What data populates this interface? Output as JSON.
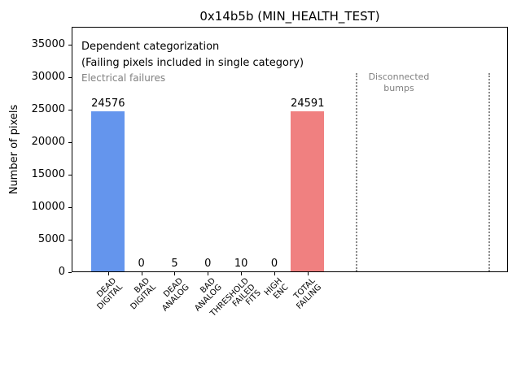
{
  "chart_data": {
    "type": "bar",
    "title": "0x14b5b (MIN_HEALTH_TEST)",
    "ylabel": "Number of pixels",
    "xlabel": "",
    "ylim": [
      0,
      37750
    ],
    "yticks": [
      0,
      5000,
      10000,
      15000,
      20000,
      25000,
      30000,
      35000
    ],
    "grid": false,
    "legend_position": "none",
    "bars": [
      {
        "label_lines": [
          "DEAD",
          "DIGITAL"
        ],
        "value": 24576,
        "color": "#6495ED"
      },
      {
        "label_lines": [
          "BAD",
          "DIGITAL"
        ],
        "value": 0,
        "color": null
      },
      {
        "label_lines": [
          "DEAD",
          "ANALOG"
        ],
        "value": 5,
        "color": null
      },
      {
        "label_lines": [
          "BAD",
          "ANALOG"
        ],
        "value": 0,
        "color": null
      },
      {
        "label_lines": [
          "THRESHOLD",
          "FAILED",
          "FITS"
        ],
        "value": 10,
        "color": null
      },
      {
        "label_lines": [
          "HIGH",
          "ENC"
        ],
        "value": 0,
        "color": null
      },
      {
        "label_lines": [
          "TOTAL",
          "FAILING"
        ],
        "value": 24591,
        "color": "#F08080"
      }
    ],
    "annotations": {
      "dependent_line1": "Dependent categorization",
      "dependent_line2": "(Failing pixels included in single category)",
      "electrical": "Electrical failures",
      "disconnected_lines": [
        "Disconnected",
        "bumps"
      ]
    },
    "colors": {
      "dead_digital_bar": "#6495ED",
      "total_failing_bar": "#F08080",
      "annotation_gray": "#808080",
      "axis": "#000000",
      "background": "#FFFFFF"
    }
  }
}
